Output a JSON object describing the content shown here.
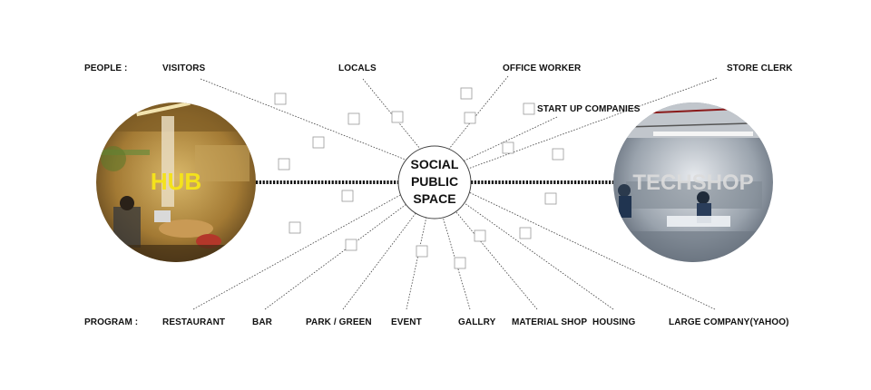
{
  "diagram": {
    "center": {
      "lines": [
        "SOCIAL",
        "PUBLIC",
        "SPACE"
      ]
    },
    "left_photo": {
      "label": "HUB"
    },
    "right_photo": {
      "label": "TECHSHOP"
    },
    "people": {
      "heading": "PEOPLE :",
      "items": [
        "VISITORS",
        "LOCALS",
        "OFFICE WORKER",
        "START UP COMPANIES",
        "STORE CLERK"
      ]
    },
    "program": {
      "heading": "PROGRAM :",
      "items": [
        "RESTAURANT",
        "BAR",
        "PARK / GREEN",
        "EVENT",
        "GALLRY",
        "MATERIAL SHOP",
        "HOUSING",
        "LARGE COMPANY(YAHOO)"
      ]
    },
    "colors": {
      "line": "#444444",
      "dashed_connector": "#111111",
      "hub_label": "#f4e21c",
      "techshop_label": "#dcdcdc",
      "checkbox_border": "#999999"
    }
  }
}
